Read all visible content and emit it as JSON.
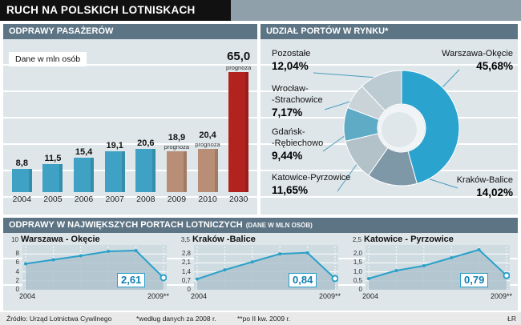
{
  "header": {
    "title": "RUCH NA POLSKICH LOTNISKACH"
  },
  "airports_panel": {
    "title": "ODPRAWY W NAJWIĘKSZYCH PORTACH LOTNICZYCH",
    "suffix": "(DANE W MLN OSÓB)"
  },
  "footer": {
    "source": "Źródło: Urząd Lotnictwa Cywilnego",
    "note1": "*według danych za 2008 r.",
    "note2": "**po II kw. 2009 r.",
    "credit": "ŁR"
  },
  "chart_data": [
    {
      "type": "bar",
      "title": "ODPRAWY PASAŻERÓW",
      "note": "Dane w mln osób",
      "forecast_label": "prognoza",
      "categories": [
        "2004",
        "2005",
        "2006",
        "2007",
        "2008",
        "2009",
        "2010",
        "2030"
      ],
      "values": [
        8.8,
        11.5,
        15.4,
        19.1,
        20.6,
        18.9,
        20.4,
        65.0
      ],
      "value_labels": [
        "8,8",
        "11,5",
        "15,4",
        "19,1",
        "20,6",
        "18,9",
        "20,4",
        "65,0"
      ],
      "forecast": [
        false,
        false,
        false,
        false,
        false,
        true,
        true,
        true
      ],
      "highlight_index": 7,
      "colors": {
        "actual": "#3fa2c4",
        "forecast": "#b98e76",
        "highlight": "#b2231f"
      }
    },
    {
      "type": "pie",
      "title": "UDZIAŁ PORTÓW W RYNKU*",
      "slices": [
        {
          "label": "Warszawa-Okęcie",
          "line1": "Warszawa-Okęcie",
          "value": 45.68,
          "value_label": "45,68%",
          "color": "#2aa3ce"
        },
        {
          "label": "Kraków-Balice",
          "line1": "Kraków-Balice",
          "value": 14.02,
          "value_label": "14,02%",
          "color": "#7f98a8"
        },
        {
          "label": "Katowice-Pyrzowice",
          "line1": "Katowice-Pyrzowice",
          "value": 11.65,
          "value_label": "11,65%",
          "color": "#b3c1c9"
        },
        {
          "label": "Gdańsk-Rębiechowo",
          "line1": "Gdańsk-",
          "line2": "-Rębiechowo",
          "value": 9.44,
          "value_label": "9,44%",
          "color": "#5fabc6"
        },
        {
          "label": "Wrocław-Strachowice",
          "line1": "Wrocław-",
          "line2": "-Strachowice",
          "value": 7.17,
          "value_label": "7,17%",
          "color": "#c9d3d8"
        },
        {
          "label": "Pozostałe",
          "line1": "Pozostałe",
          "value": 12.04,
          "value_label": "12,04%",
          "color": "#bccad2"
        }
      ]
    },
    {
      "type": "area",
      "title": "Warszawa - Okęcie",
      "top_tick": "10",
      "y_ticks": [
        "8",
        "6",
        "4",
        "2",
        "0"
      ],
      "ymax": 10,
      "x_start": "2004",
      "x_end": "2009**",
      "values": [
        6.1,
        7.1,
        8.1,
        9.2,
        9.4,
        2.61
      ],
      "end_label": "2,61"
    },
    {
      "type": "area",
      "title": "Kraków -Balice",
      "top_tick": "3,5",
      "y_ticks": [
        "2,8",
        "2,1",
        "1,4",
        "0,7",
        "0"
      ],
      "ymax": 3.5,
      "x_start": "2004",
      "x_end": "2009**",
      "values": [
        0.8,
        1.6,
        2.3,
        3.0,
        3.1,
        0.84
      ],
      "end_label": "0,84"
    },
    {
      "type": "area",
      "title": "Katowice - Pyrzowice",
      "top_tick": "2,5",
      "y_ticks": [
        "2,0",
        "1,5",
        "1,0",
        "0,5",
        "0"
      ],
      "ymax": 2.5,
      "x_start": "2004",
      "x_end": "2009**",
      "values": [
        0.6,
        1.1,
        1.4,
        1.9,
        2.4,
        0.79
      ],
      "end_label": "0,79"
    }
  ]
}
